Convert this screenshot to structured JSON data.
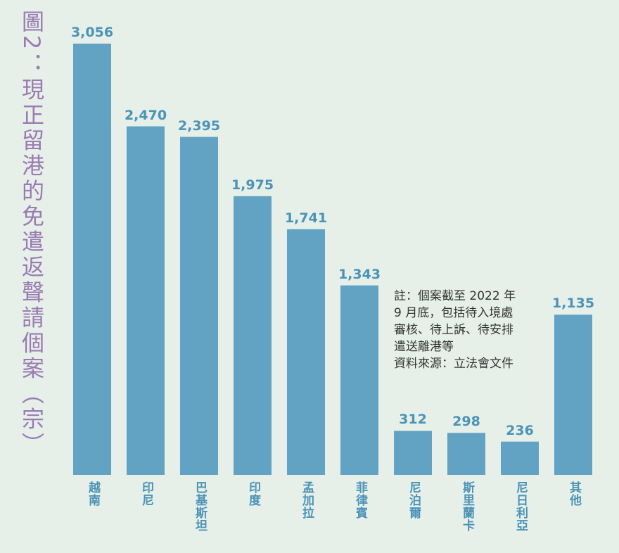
{
  "chart_data": {
    "type": "bar",
    "title": "圖2：現正留港的免遣返聲請個案（宗）",
    "categories": [
      "越南",
      "印尼",
      "巴基斯坦",
      "印度",
      "孟加拉",
      "菲律賓",
      "尼泊爾",
      "斯里蘭卡",
      "尼日利亞",
      "其他"
    ],
    "values": [
      3056,
      2470,
      2395,
      1975,
      1741,
      1343,
      312,
      298,
      236,
      1135
    ],
    "value_labels": [
      "3,056",
      "2,470",
      "2,395",
      "1,975",
      "1,741",
      "1,343",
      "312",
      "298",
      "236",
      "1,135"
    ],
    "color": "#62a3c4",
    "note": [
      "註：個案截至 2022 年",
      "9 月底，包括待入境處",
      "審核、待上訴、待安排",
      "遣送離港等",
      "資料來源：立法會文件"
    ]
  }
}
